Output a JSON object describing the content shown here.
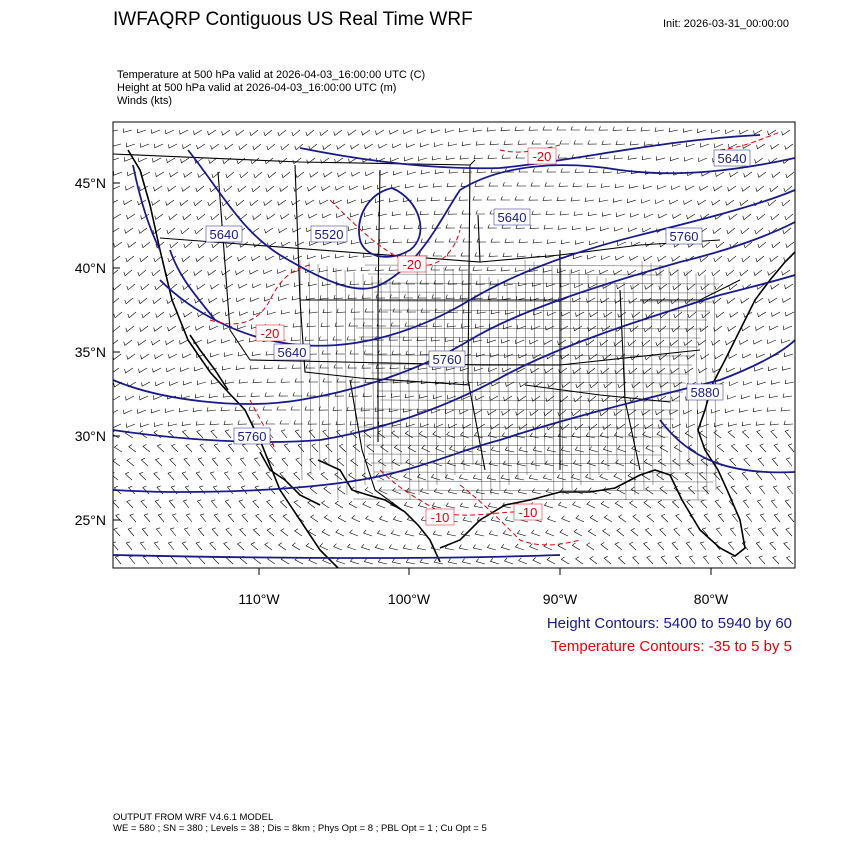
{
  "header": {
    "title": "IWFAQRP Contiguous US Real Time WRF",
    "init": "Init: 2026-03-31_00:00:00"
  },
  "fields": [
    "Temperature at 500 hPa valid at 2026-04-03_16:00:00 UTC   (C)",
    "Height at 500 hPa valid at 2026-04-03_16:00:00 UTC   (m)",
    "Winds   (kts)"
  ],
  "axes": {
    "lat_labels": [
      "45°N",
      "40°N",
      "35°N",
      "30°N",
      "25°N"
    ],
    "lon_labels": [
      "110°W",
      "100°W",
      "90°W",
      "80°W"
    ]
  },
  "height_labels": [
    "5640",
    "5520",
    "5640",
    "5640",
    "5760",
    "5640",
    "5760",
    "5760",
    "5880"
  ],
  "temp_labels": [
    "-20",
    "-20",
    "-20",
    "-10",
    "-10"
  ],
  "legend": {
    "height": "Height Contours: 5400 to 5940 by 60",
    "temp": "Temperature Contours: -35 to 5 by 5"
  },
  "colors": {
    "height_contour": "#1a1a8c",
    "temp_contour": "#e8000b",
    "map_lines": "#000000",
    "wind_barbs": "#000000"
  },
  "footer": {
    "line1": "OUTPUT FROM WRF V4.6.1 MODEL",
    "line2": "WE = 580 ; SN = 380 ; Levels = 38 ; Dis = 8km ; Phys Opt = 8 ; PBL Opt = 1 ; Cu Opt = 5"
  }
}
